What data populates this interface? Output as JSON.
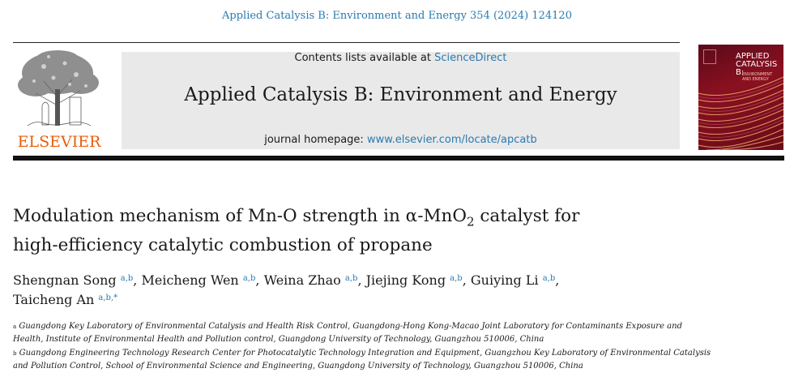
{
  "header": {
    "citation": "Applied Catalysis B: Environment and Energy 354 (2024) 124120"
  },
  "publisher": {
    "name": "ELSEVIER",
    "brand_color": "#e85d0c"
  },
  "banner": {
    "contents_prefix": "Contents lists available at ",
    "contents_link": "ScienceDirect",
    "journal_title": "Applied Catalysis B: Environment and Energy",
    "homepage_prefix": "journal homepage: ",
    "homepage_url": "www.elsevier.com/locate/apcatb"
  },
  "cover": {
    "title_line1": "APPLIED",
    "title_line2": "CATALYSIS B:",
    "subtitle_line1": "ENVIRONMENT",
    "subtitle_line2": "AND ENERGY"
  },
  "article": {
    "title_part1": "Modulation mechanism of Mn-O strength in α-MnO",
    "title_sub": "2",
    "title_part2": " catalyst for",
    "title_line2": "high-efficiency catalytic combustion of propane",
    "authors": [
      {
        "name": "Shengnan Song",
        "sup": "a,b",
        "sep": ","
      },
      {
        "name": "Meicheng Wen",
        "sup": "a,b",
        "sep": ","
      },
      {
        "name": "Weina Zhao",
        "sup": "a,b",
        "sep": ","
      },
      {
        "name": "Jiejing Kong",
        "sup": "a,b",
        "sep": ","
      },
      {
        "name": "Guiying Li",
        "sup": "a,b",
        "sep": ","
      },
      {
        "name": "Taicheng An",
        "sup": "a,b,*",
        "sep": ""
      }
    ],
    "affiliations": [
      {
        "key": "a",
        "line1": "Guangdong Key Laboratory of Environmental Catalysis and Health Risk Control, Guangdong-Hong Kong-Macao Joint Laboratory for Contaminants Exposure and",
        "line2": "Health, Institute of Environmental Health and Pollution control, Guangdong University of Technology, Guangzhou 510006, China"
      },
      {
        "key": "b",
        "line1": "Guangdong Engineering Technology Research Center for Photocatalytic Technology Integration and Equipment, Guangzhou Key Laboratory of Environmental Catalysis",
        "line2": "and Pollution Control, School of Environmental Science and Engineering, Guangdong University of Technology, Guangzhou 510006, China"
      }
    ]
  },
  "colors": {
    "link": "#2a7ab0",
    "banner_bg": "#e9e9e9"
  }
}
